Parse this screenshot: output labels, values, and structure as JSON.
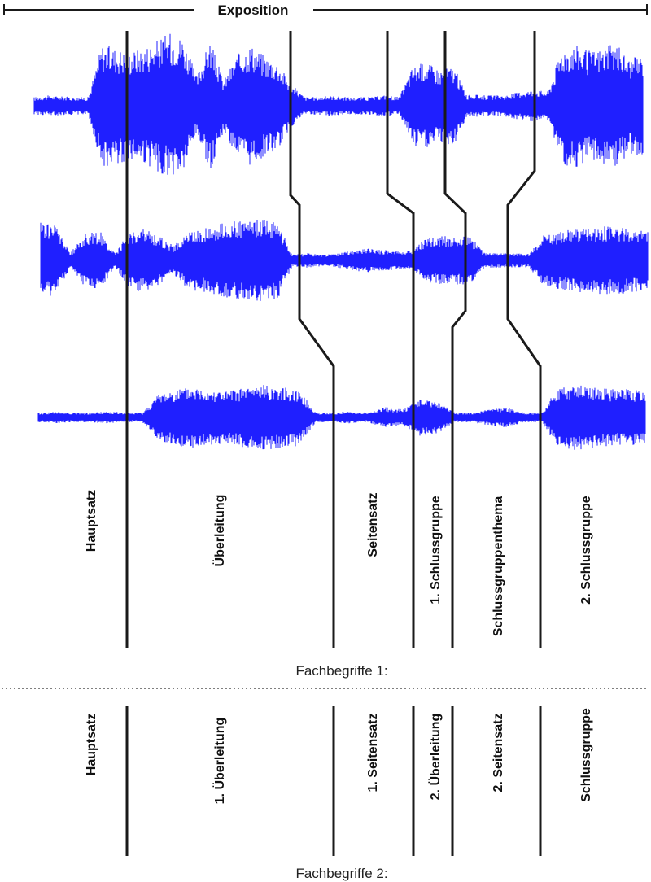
{
  "title": "Exposition",
  "colors": {
    "waveform": "#1f1fff",
    "line": "#1a1a1a"
  },
  "waveforms": [
    {
      "name": "recording-1",
      "amplitude": [
        0.12,
        0.14,
        0.13,
        0.12,
        0.12,
        0.85,
        0.8,
        0.75,
        0.8,
        0.9,
        1.0,
        0.95,
        0.4,
        0.9,
        0.35,
        0.7,
        0.85,
        0.7,
        0.6,
        0.3,
        0.12,
        0.12,
        0.14,
        0.12,
        0.12,
        0.12,
        0.15,
        0.12,
        0.55,
        0.6,
        0.5,
        0.55,
        0.15,
        0.15,
        0.14,
        0.15,
        0.2,
        0.22,
        0.2,
        0.8,
        0.85,
        0.75,
        0.8,
        0.85,
        0.65,
        0.7
      ]
    },
    {
      "name": "recording-2",
      "amplitude": [
        0.8,
        0.75,
        0.15,
        0.55,
        0.6,
        0.15,
        0.6,
        0.65,
        0.5,
        0.3,
        0.6,
        0.65,
        0.75,
        0.8,
        0.8,
        0.85,
        0.8,
        0.12,
        0.15,
        0.12,
        0.14,
        0.2,
        0.25,
        0.22,
        0.2,
        0.2,
        0.45,
        0.5,
        0.5,
        0.5,
        0.15,
        0.15,
        0.15,
        0.14,
        0.55,
        0.6,
        0.65,
        0.65,
        0.7,
        0.7,
        0.65,
        0.6
      ]
    },
    {
      "name": "recording-3",
      "amplitude": [
        0.12,
        0.14,
        0.12,
        0.12,
        0.15,
        0.12,
        0.12,
        0.6,
        0.7,
        0.75,
        0.7,
        0.65,
        0.75,
        0.8,
        0.75,
        0.7,
        0.12,
        0.12,
        0.15,
        0.12,
        0.25,
        0.2,
        0.45,
        0.4,
        0.12,
        0.12,
        0.2,
        0.25,
        0.12,
        0.12,
        0.75,
        0.8,
        0.75,
        0.7,
        0.7,
        0.65
      ]
    }
  ],
  "section_labels_1": [
    "Hauptsatz",
    "Überleitung",
    "Seitensatz",
    "1. Schlussgruppe",
    "Schlussgruppenthema",
    "2. Schlussgruppe"
  ],
  "caption_1": "Fachbegriffe 1:",
  "section_labels_2": [
    "Hauptsatz",
    "1. Überleitung",
    "1. Seitensatz",
    "2. Überleitung",
    "2. Seitensatz",
    "Schlussgruppe"
  ],
  "caption_2": "Fachbegriffe 2:"
}
